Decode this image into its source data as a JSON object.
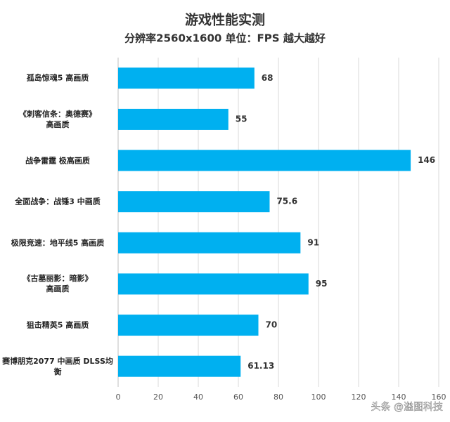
{
  "chart_data": {
    "type": "bar",
    "orientation": "horizontal",
    "title": "游戏性能实测",
    "subtitle": "分辨率2560x1600 单位：FPS 越大越好",
    "categories": [
      "孤岛惊魂5 高画质",
      "《刺客信条：奥德赛》\n高画质",
      "战争雷霆 极高画质",
      "全面战争：战锤3 中画质",
      "极限竞速：地平线5 高画质",
      "《古墓丽影：暗影》\n高画质",
      "狙击精英5 高画质",
      "赛博朋克2077 中画质 DLSS均衡"
    ],
    "values": [
      68,
      55,
      146,
      75.6,
      91,
      95,
      70,
      61.13
    ],
    "color": "#00b0f0",
    "xlim": [
      0,
      160
    ],
    "xticks": [
      0,
      20,
      40,
      60,
      80,
      100,
      120,
      140,
      160
    ],
    "grid": true,
    "watermark": "头条 @溢图科技"
  }
}
